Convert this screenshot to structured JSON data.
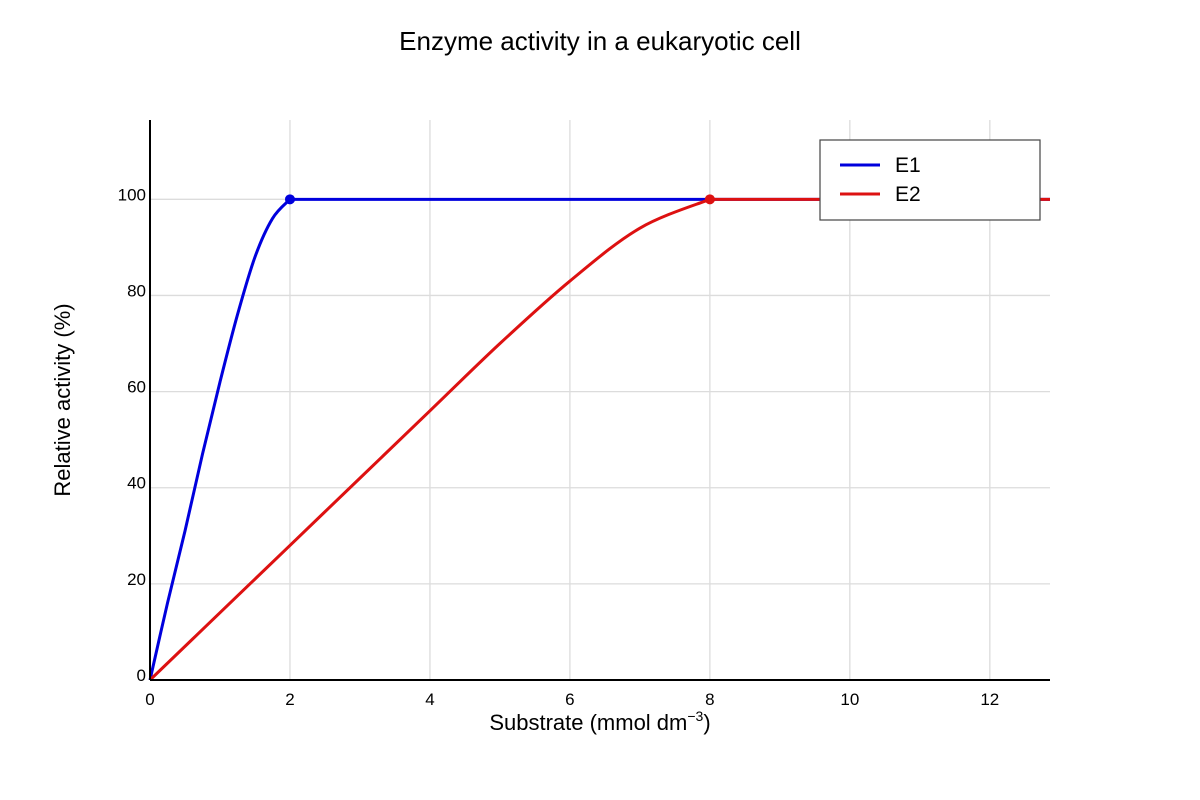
{
  "chart_data": {
    "type": "line",
    "title": "Enzyme activity in a eukaryotic cell",
    "xlabel_main": "Substrate (mmol dm",
    "xlabel_sup": "−3",
    "xlabel_end": ")",
    "ylabel": "Relative activity (%)",
    "xlim": [
      0,
      12.86
    ],
    "ylim": [
      0,
      116.5
    ],
    "xticks": [
      0,
      2,
      4,
      6,
      8,
      10,
      12
    ],
    "yticks": [
      0,
      20,
      40,
      60,
      80,
      100
    ],
    "grid": true,
    "legend_position": "top-right",
    "series": [
      {
        "name": "E1",
        "color": "#0000dd",
        "x": [
          0,
          0.25,
          0.5,
          0.75,
          1.0,
          1.25,
          1.5,
          1.75,
          2.0,
          12.86
        ],
        "y": [
          0,
          16,
          31,
          47,
          62,
          76,
          88,
          96,
          100,
          100
        ],
        "marker_point": [
          2,
          100
        ]
      },
      {
        "name": "E2",
        "color": "#dd1111",
        "x": [
          0,
          1,
          2,
          3,
          4,
          5,
          6,
          7,
          8,
          12.86
        ],
        "y": [
          0,
          14,
          28,
          42,
          56,
          70,
          83,
          94,
          100,
          100
        ],
        "marker_point": [
          8,
          100
        ]
      }
    ]
  }
}
